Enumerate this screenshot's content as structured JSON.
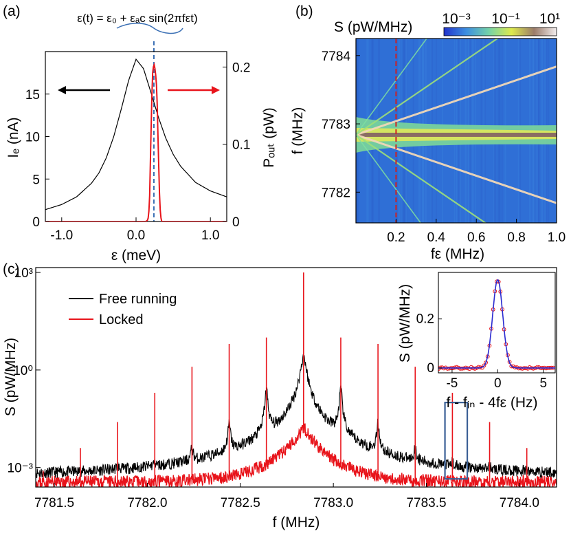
{
  "panel_labels": {
    "a": "(a)",
    "b": "(b)",
    "c": "(c)"
  },
  "chart_data": [
    {
      "id": "a",
      "type": "line",
      "annotation": "ε(t) = ε₀ + εₐc sin(2πfεt)",
      "xlabel": "ε (meV)",
      "ylabel_left": "Iₑ (nA)",
      "ylabel_right": "Pₒᵤₜ (pW)",
      "xlim": [
        -1.22,
        1.22
      ],
      "ylim_left": [
        0,
        20
      ],
      "ylim_right": [
        0,
        0.22
      ],
      "x_ticks": [
        {
          "v": -1,
          "label": "-1.0"
        },
        {
          "v": 0,
          "label": "0.0"
        },
        {
          "v": 1,
          "label": "1.0"
        }
      ],
      "y_ticks_left": [
        {
          "v": 0,
          "label": "0"
        },
        {
          "v": 5,
          "label": "5"
        },
        {
          "v": 10,
          "label": "10"
        },
        {
          "v": 15,
          "label": "15"
        }
      ],
      "y_ticks_right": [
        {
          "v": 0,
          "label": "0"
        },
        {
          "v": 0.1,
          "label": "0.1"
        },
        {
          "v": 0.2,
          "label": "0.2"
        }
      ],
      "series": [
        {
          "axis": "left",
          "color": "#000000",
          "x": [
            -1.22,
            -1.0,
            -0.8,
            -0.6,
            -0.5,
            -0.4,
            -0.3,
            -0.2,
            -0.1,
            0.0,
            0.1,
            0.2,
            0.3,
            0.4,
            0.5,
            0.6,
            0.8,
            1.0,
            1.22
          ],
          "y": [
            1.4,
            2.0,
            2.9,
            4.5,
            5.7,
            7.5,
            10.0,
            13.2,
            16.6,
            19.1,
            18.0,
            15.2,
            12.3,
            9.8,
            7.9,
            6.5,
            4.6,
            3.6,
            2.9
          ]
        },
        {
          "axis": "right",
          "color": "#e8141b",
          "x": [
            -1.22,
            0.13,
            0.16,
            0.18,
            0.2,
            0.22,
            0.24,
            0.26,
            0.28,
            0.3,
            0.32,
            0.34,
            1.22
          ],
          "y": [
            0.0,
            0.0,
            0.002,
            0.02,
            0.11,
            0.19,
            0.205,
            0.195,
            0.17,
            0.09,
            0.02,
            0.0,
            0.0
          ]
        }
      ],
      "dashed_line_x": 0.24,
      "arrow_colors": [
        "#000000",
        "#e8141b"
      ]
    },
    {
      "id": "b",
      "type": "heatmap",
      "xlabel": "fε (MHz)",
      "ylabel": "f (MHz)",
      "colorbar_label": "S (pW/MHz)",
      "colorbar_ticks": [
        "10⁻³",
        "10⁻¹",
        "10¹"
      ],
      "colorbar_stops": [
        "#2233cc",
        "#3c8fe0",
        "#74d2a8",
        "#ddea4d",
        "#9b7b69",
        "#f3eeee"
      ],
      "xlim": [
        0,
        1.0
      ],
      "ylim": [
        7781.55,
        7784.25
      ],
      "x_ticks": [
        {
          "v": 0.2,
          "label": "0.2"
        },
        {
          "v": 0.4,
          "label": "0.4"
        },
        {
          "v": 0.6,
          "label": "0.6"
        },
        {
          "v": 0.8,
          "label": "0.8"
        },
        {
          "v": 1.0,
          "label": "1.0"
        }
      ],
      "y_ticks": [
        {
          "v": 7782,
          "label": "7782"
        },
        {
          "v": 7783,
          "label": "7783"
        },
        {
          "v": 7784,
          "label": "7784"
        }
      ],
      "center_f": 7782.84,
      "sideband_orders": [
        1,
        2,
        4
      ],
      "dashed_line_x": 0.2
    },
    {
      "id": "c",
      "type": "line",
      "xlabel": "f (MHz)",
      "ylabel": "S (pW/MHz)",
      "xlim": [
        7781.4,
        7784.2
      ],
      "ylim_log": [
        -3.6,
        3.15
      ],
      "x_ticks": [
        {
          "v": 7781.5,
          "label": "7781.5"
        },
        {
          "v": 7782.0,
          "label": "7782.0"
        },
        {
          "v": 7782.5,
          "label": "7782.5"
        },
        {
          "v": 7783.0,
          "label": "7783.0"
        },
        {
          "v": 7783.5,
          "label": "7783.5"
        },
        {
          "v": 7784.0,
          "label": "7784.0"
        }
      ],
      "y_ticks": [
        {
          "v": 3,
          "label": "10³"
        },
        {
          "v": 0,
          "label": "10⁰"
        },
        {
          "v": -3,
          "label": "10⁻³"
        }
      ],
      "legend": [
        {
          "label": "Free running",
          "color": "#000000"
        },
        {
          "label": "Locked",
          "color": "#e8141b"
        }
      ],
      "legend_position": "top-left",
      "center_f": 7782.84,
      "sideband_spacing": 0.2,
      "free_running_peaks_log": {
        "0": 0.4,
        "1": -0.6,
        "2": -1.7,
        "3": -2.6,
        "4": -3.4,
        "5": -3.6
      },
      "locked_peaks_log": {
        "0": 3.0,
        "1": 1.0,
        "2": 0.8,
        "3": 0.1,
        "4": -0.7,
        "5": -1.6,
        "6": -2.4,
        "7": -3.1
      },
      "zoom_box_f": [
        7783.6,
        7783.72
      ],
      "inset": {
        "type": "scatter",
        "xlabel": "f - fᵢₙ - 4fε (Hz)",
        "ylabel": "S (pW/MHz)",
        "xlim": [
          -6.5,
          6.3
        ],
        "ylim": [
          -0.02,
          0.39
        ],
        "x_ticks": [
          {
            "v": -5,
            "label": "-5"
          },
          {
            "v": 0,
            "label": "0"
          },
          {
            "v": 5,
            "label": "5"
          }
        ],
        "y_ticks": [
          {
            "v": 0,
            "label": "0"
          },
          {
            "v": 0.2,
            "label": "0.2"
          }
        ],
        "peak": 0.36,
        "width_hz": 0.55,
        "data_color": "#e8141b",
        "fit_color": "#2a2ad0"
      }
    }
  ]
}
